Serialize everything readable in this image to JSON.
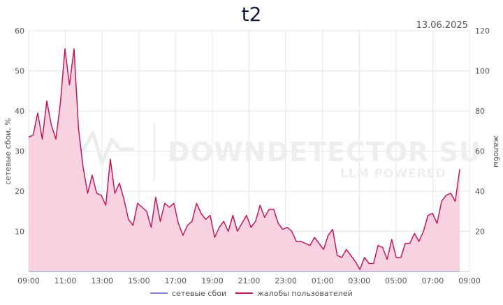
{
  "title": "t2",
  "date": "13.06.2025",
  "watermark": {
    "main": "DOWNDETECTOR SU",
    "sub": "LLM POWERED"
  },
  "colors": {
    "complaints": "#c2185b",
    "complaints_fill": "#f8d2e0",
    "network": "#7b7fd8",
    "grid": "#e6e6e6"
  },
  "chart_data": {
    "type": "area",
    "x_ticks": [
      "09:00",
      "11:00",
      "13:00",
      "15:00",
      "17:00",
      "19:00",
      "21:00",
      "23:00",
      "01:00",
      "03:00",
      "05:00",
      "07:00",
      "09:00"
    ],
    "x_range_hours": [
      0,
      24
    ],
    "y_left": {
      "label": "сетевые сбои, %",
      "range": [
        0,
        60
      ],
      "ticks": [
        10,
        20,
        30,
        40,
        50,
        60
      ]
    },
    "y_right": {
      "label": "жалобы",
      "range": [
        0,
        120
      ],
      "ticks": [
        20,
        40,
        60,
        80,
        100,
        120
      ]
    },
    "legend": {
      "position": "bottom-center"
    },
    "grid": true,
    "series": [
      {
        "name": "сетевые сбои",
        "axis": "left",
        "values": [
          0,
          0
        ]
      },
      {
        "name": "жалобы пользователей",
        "axis": "right",
        "values": [
          67,
          68,
          79,
          66,
          85,
          73,
          66,
          84,
          111,
          93,
          111,
          71,
          52,
          39,
          48,
          39,
          38,
          33,
          56,
          39,
          44,
          36,
          26,
          23,
          34,
          32,
          30,
          22,
          37,
          25,
          34,
          32,
          34,
          24,
          18,
          23,
          25,
          34,
          29,
          26,
          28,
          17,
          22,
          25,
          20,
          28,
          20,
          24,
          28,
          22,
          25,
          33,
          27,
          31,
          31,
          24,
          21,
          22,
          20,
          15,
          15,
          14,
          13,
          17,
          14,
          11,
          18,
          21,
          8,
          7,
          11,
          8,
          5,
          1,
          7,
          4,
          4,
          13,
          12,
          6,
          16,
          7,
          7,
          14,
          14,
          19,
          15,
          20,
          28,
          29,
          24,
          35,
          38,
          39,
          35,
          51
        ]
      }
    ]
  }
}
